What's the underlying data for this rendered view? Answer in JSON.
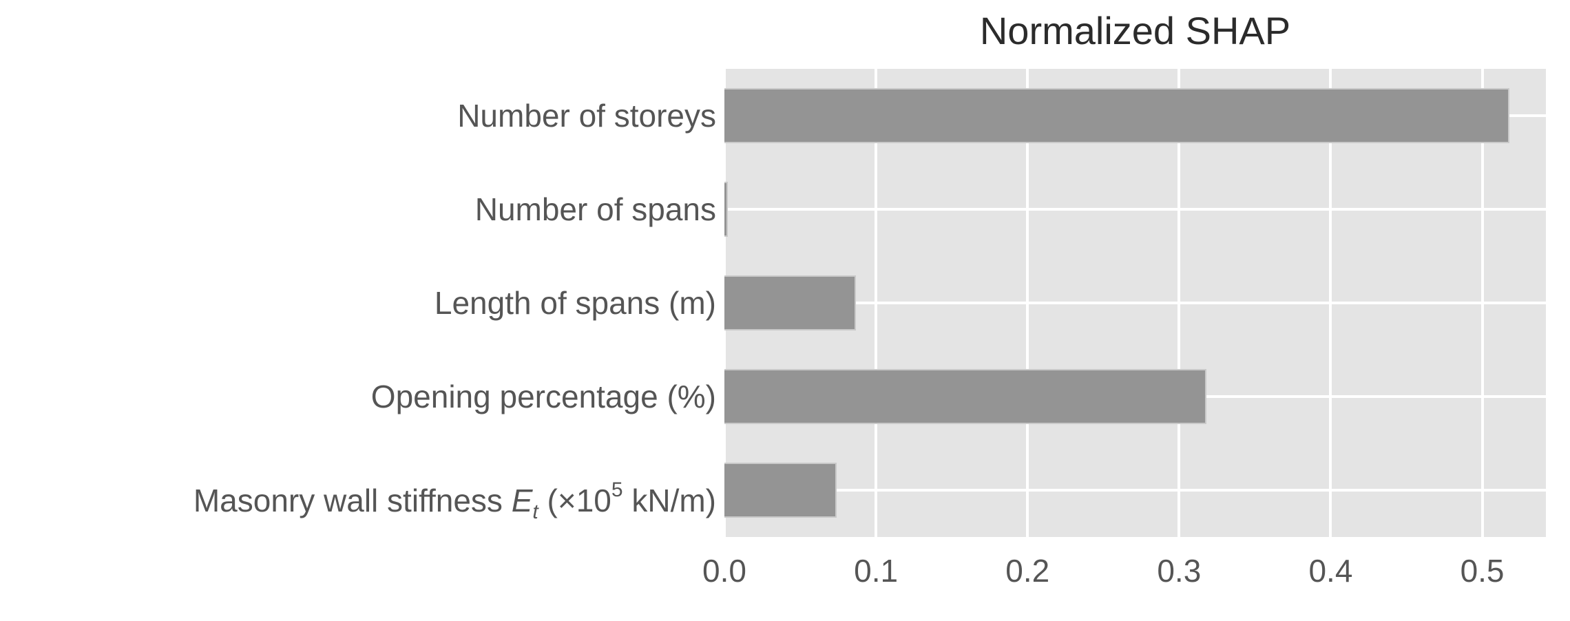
{
  "chart_data": {
    "type": "bar",
    "orientation": "horizontal",
    "title": "Normalized SHAP",
    "categories": [
      "Number of storeys",
      "Number of spans",
      "Length of spans (m)",
      "Opening percentage (%)",
      "Masonry wall stiffness Et (×10^5 kN/m)"
    ],
    "category_runs": [
      [
        {
          "t": "Number of storeys"
        }
      ],
      [
        {
          "t": "Number of spans"
        }
      ],
      [
        {
          "t": "Length of spans (m)"
        }
      ],
      [
        {
          "t": "Opening percentage (%)"
        }
      ],
      [
        {
          "t": "Masonry wall stiffness "
        },
        {
          "t": "E",
          "s": "i"
        },
        {
          "t": "t",
          "s": "isub"
        },
        {
          "t": " (×10"
        },
        {
          "t": "5",
          "s": "sup"
        },
        {
          "t": " kN/m)"
        }
      ]
    ],
    "values": [
      0.518,
      0.002,
      0.087,
      0.318,
      0.074
    ],
    "x_ticks": [
      "0.0",
      "0.1",
      "0.2",
      "0.3",
      "0.4",
      "0.5"
    ],
    "x_tick_values": [
      0.0,
      0.1,
      0.2,
      0.3,
      0.4,
      0.5
    ],
    "xlim": [
      0.0,
      0.542
    ],
    "xlabel": "",
    "ylabel": "",
    "grid": "white gridlines on gray panel",
    "legend": "none",
    "colors": {
      "bar": "#949494",
      "bar_edge": "#c9c9c9",
      "plot_background": "#e4e4e4",
      "gridline": "#ffffff",
      "title_text": "#2b2b2b",
      "tick_text": "#555555",
      "page_background": "#ffffff"
    }
  }
}
